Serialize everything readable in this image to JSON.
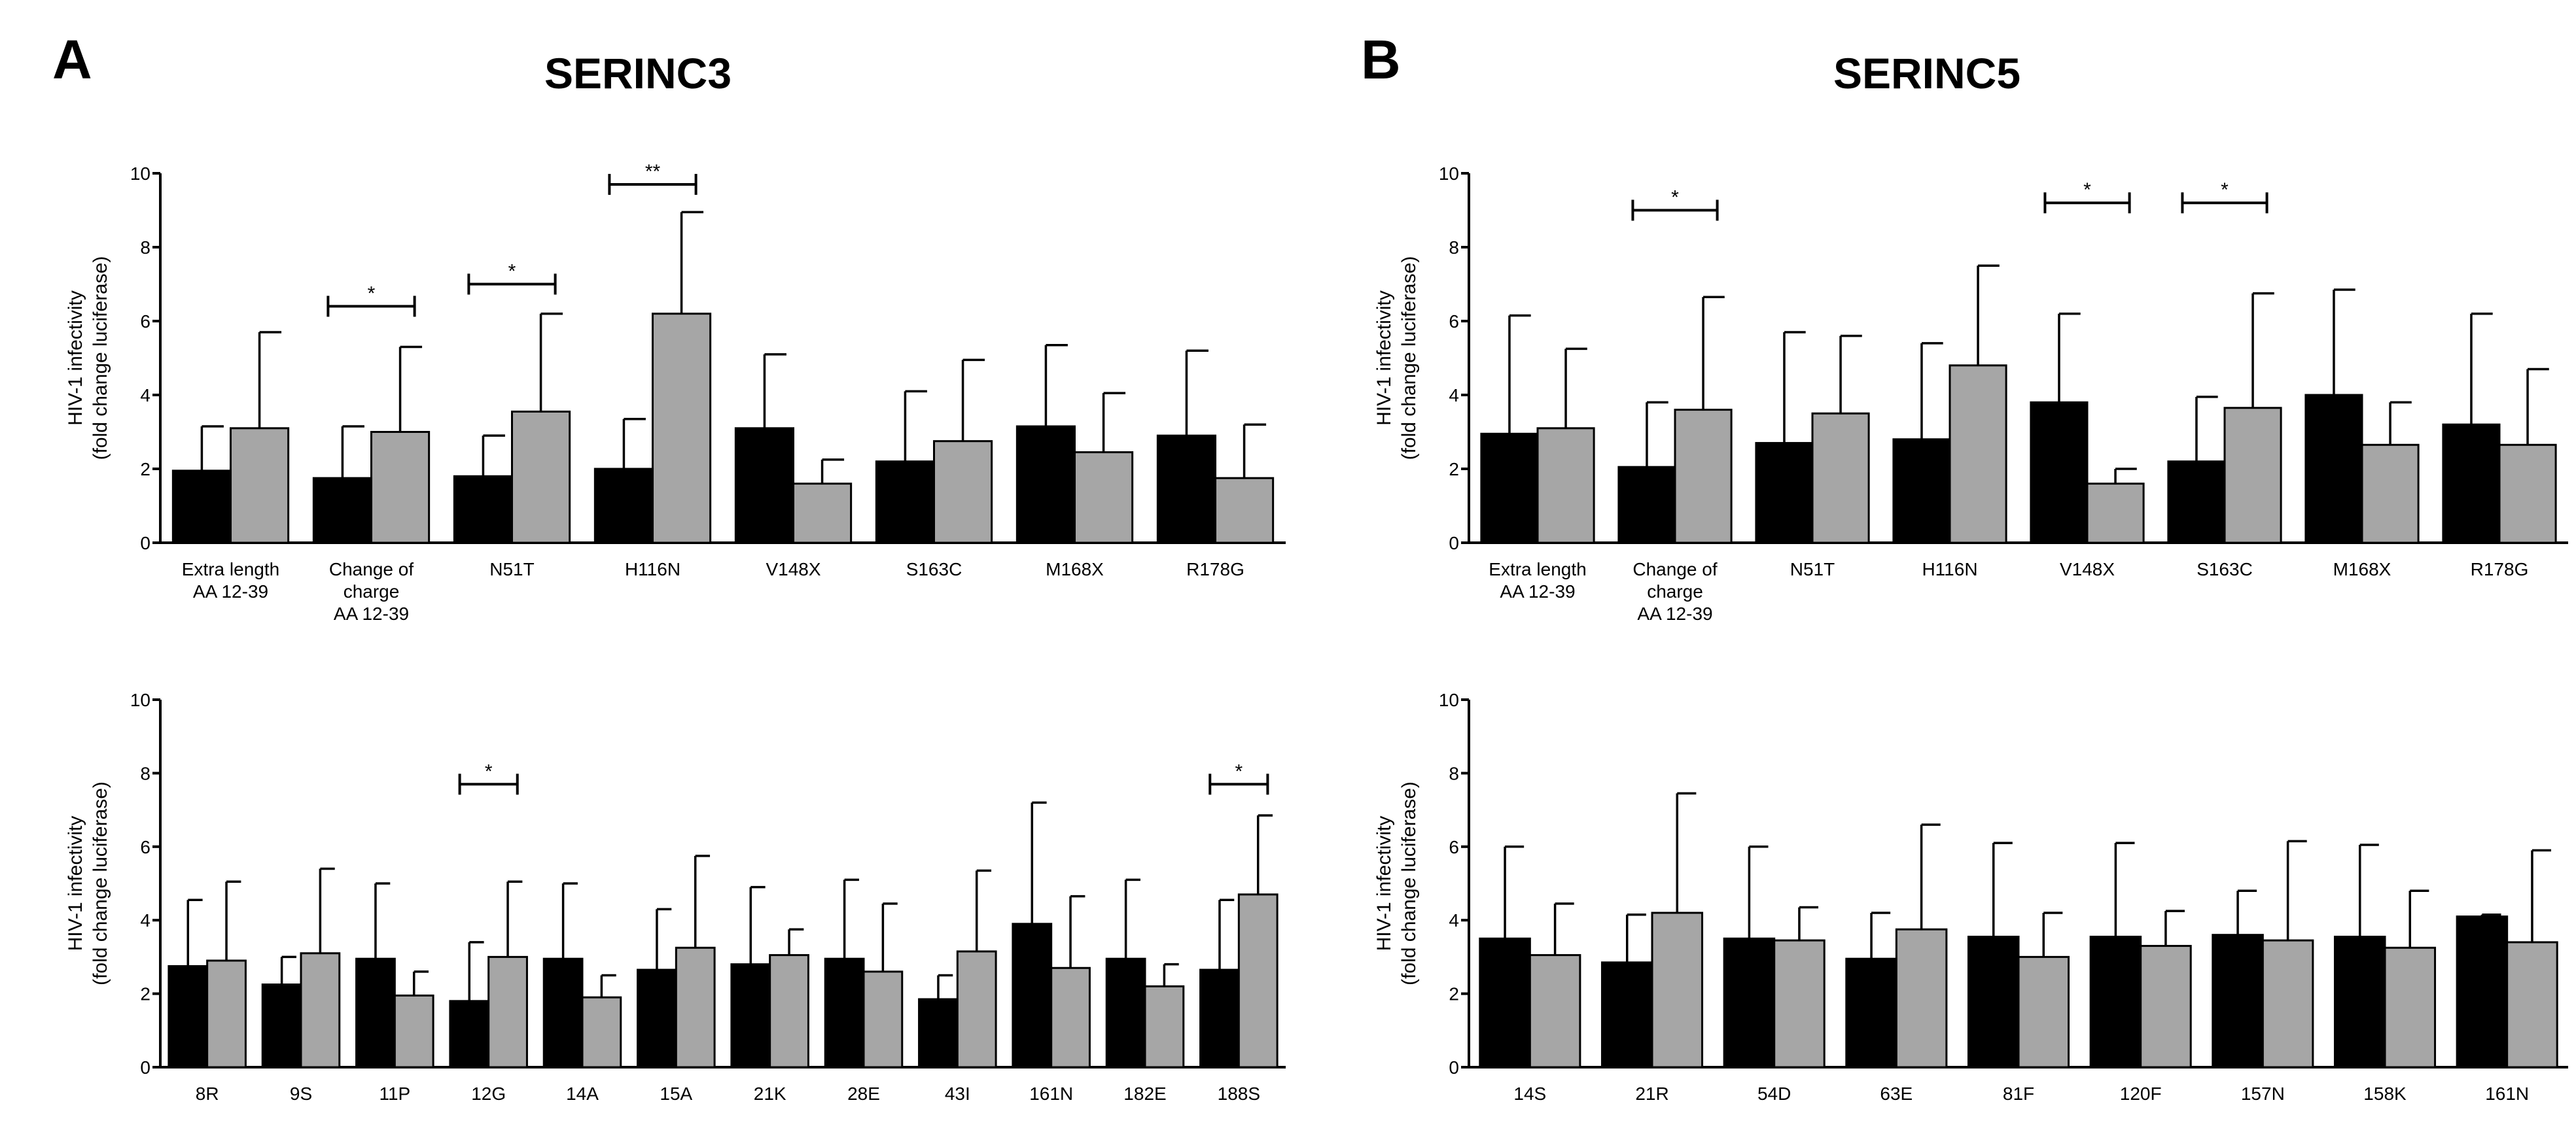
{
  "colors": {
    "series1": "#000000",
    "series2": "#a6a6a6",
    "axis": "#000000"
  },
  "panels": [
    {
      "letter": "A",
      "title": "SERINC3"
    },
    {
      "letter": "B",
      "title": "SERINC5"
    }
  ],
  "chart_data": [
    {
      "id": "A-top",
      "panel": "A",
      "type": "bar",
      "ylabel": [
        "HIV-1 infectivity",
        "(fold change luciferase)"
      ],
      "ylim": [
        0,
        10
      ],
      "yticks": [
        0,
        2,
        4,
        6,
        8,
        10
      ],
      "categories": [
        [
          "Extra length",
          "AA 12-39"
        ],
        [
          "Change of",
          "charge",
          "AA 12-39"
        ],
        [
          "N51T"
        ],
        [
          "H116N"
        ],
        [
          "V148X"
        ],
        [
          "S163C"
        ],
        [
          "M168X"
        ],
        [
          "R178G"
        ]
      ],
      "series": [
        {
          "name": "series-1",
          "values": [
            1.95,
            1.75,
            1.8,
            2.0,
            3.1,
            2.2,
            3.15,
            2.9
          ],
          "errors": [
            1.2,
            1.4,
            1.1,
            1.35,
            2.0,
            1.9,
            2.2,
            2.3
          ]
        },
        {
          "name": "series-2",
          "values": [
            3.1,
            3.0,
            3.55,
            6.2,
            1.6,
            2.75,
            2.45,
            1.75
          ],
          "errors": [
            2.6,
            2.3,
            2.65,
            2.75,
            0.65,
            2.2,
            1.6,
            1.45
          ]
        }
      ],
      "significance": [
        {
          "category": 1,
          "label": "*",
          "y": 6.4
        },
        {
          "category": 2,
          "label": "*",
          "y": 7.0
        },
        {
          "category": 3,
          "label": "**",
          "y": 9.7
        }
      ]
    },
    {
      "id": "B-top",
      "panel": "B",
      "type": "bar",
      "ylabel": [
        "HIV-1 infectivity",
        "(fold change luciferase)"
      ],
      "ylim": [
        0,
        10
      ],
      "yticks": [
        0,
        2,
        4,
        6,
        8,
        10
      ],
      "categories": [
        [
          "Extra length",
          "AA 12-39"
        ],
        [
          "Change of",
          "charge",
          "AA 12-39"
        ],
        [
          "N51T"
        ],
        [
          "H116N"
        ],
        [
          "V148X"
        ],
        [
          "S163C"
        ],
        [
          "M168X"
        ],
        [
          "R178G"
        ]
      ],
      "series": [
        {
          "name": "series-1",
          "values": [
            2.95,
            2.05,
            2.7,
            2.8,
            3.8,
            2.2,
            4.0,
            3.2
          ],
          "errors": [
            3.2,
            1.75,
            3.0,
            2.6,
            2.4,
            1.75,
            2.85,
            3.0
          ]
        },
        {
          "name": "series-2",
          "values": [
            3.1,
            3.6,
            3.5,
            4.8,
            1.6,
            3.65,
            2.65,
            2.65
          ],
          "errors": [
            2.15,
            3.05,
            2.1,
            2.7,
            0.4,
            3.1,
            1.15,
            2.05
          ]
        }
      ],
      "significance": [
        {
          "category": 1,
          "label": "*",
          "y": 9.0
        },
        {
          "category": 4,
          "label": "*",
          "y": 9.2
        },
        {
          "category": 5,
          "label": "*",
          "y": 9.2
        }
      ]
    },
    {
      "id": "A-bottom",
      "panel": "A",
      "type": "bar",
      "ylabel": [
        "HIV-1 infectivity",
        "(fold change luciferase)"
      ],
      "ylim": [
        0,
        10
      ],
      "yticks": [
        0,
        2,
        4,
        6,
        8,
        10
      ],
      "categories": [
        [
          "8R"
        ],
        [
          "9S"
        ],
        [
          "11P"
        ],
        [
          "12G"
        ],
        [
          "14A"
        ],
        [
          "15A"
        ],
        [
          "21K"
        ],
        [
          "28E"
        ],
        [
          "43I"
        ],
        [
          "161N"
        ],
        [
          "182E"
        ],
        [
          "188S"
        ]
      ],
      "series": [
        {
          "name": "series-1",
          "values": [
            2.75,
            2.25,
            2.95,
            1.8,
            2.95,
            2.65,
            2.8,
            2.95,
            1.85,
            3.9,
            2.95,
            2.65
          ],
          "errors": [
            1.8,
            0.75,
            2.05,
            1.6,
            2.05,
            1.65,
            2.1,
            2.15,
            0.65,
            3.3,
            2.15,
            1.9
          ]
        },
        {
          "name": "series-2",
          "values": [
            2.9,
            3.1,
            1.95,
            3.0,
            1.9,
            3.25,
            3.05,
            2.6,
            3.15,
            2.7,
            2.2,
            4.7
          ],
          "errors": [
            2.15,
            2.3,
            0.65,
            2.05,
            0.6,
            2.5,
            0.7,
            1.85,
            2.2,
            1.95,
            0.6,
            2.15
          ]
        }
      ],
      "significance": [
        {
          "category": 3,
          "label": "*",
          "y": 7.7
        },
        {
          "category": 11,
          "label": "*",
          "y": 7.7
        }
      ]
    },
    {
      "id": "B-bottom",
      "panel": "B",
      "type": "bar",
      "ylabel": [
        "HIV-1 infectivity",
        "(fold change luciferase)"
      ],
      "ylim": [
        0,
        10
      ],
      "yticks": [
        0,
        2,
        4,
        6,
        8,
        10
      ],
      "categories": [
        [
          "14S"
        ],
        [
          "21R"
        ],
        [
          "54D"
        ],
        [
          "63E"
        ],
        [
          "81F"
        ],
        [
          "120F"
        ],
        [
          "157N"
        ],
        [
          "158K"
        ],
        [
          "161N"
        ]
      ],
      "series": [
        {
          "name": "series-1",
          "values": [
            3.5,
            2.85,
            3.5,
            2.95,
            3.55,
            3.55,
            3.6,
            3.55,
            4.1
          ],
          "errors": [
            2.5,
            1.3,
            2.5,
            1.25,
            2.55,
            2.55,
            1.2,
            2.5,
            0.05
          ]
        },
        {
          "name": "series-2",
          "values": [
            3.05,
            4.2,
            3.45,
            3.75,
            3.0,
            3.3,
            3.45,
            3.25,
            3.4
          ],
          "errors": [
            1.4,
            3.25,
            0.9,
            2.85,
            1.2,
            0.95,
            2.7,
            1.55,
            2.5
          ]
        }
      ],
      "significance": []
    }
  ]
}
